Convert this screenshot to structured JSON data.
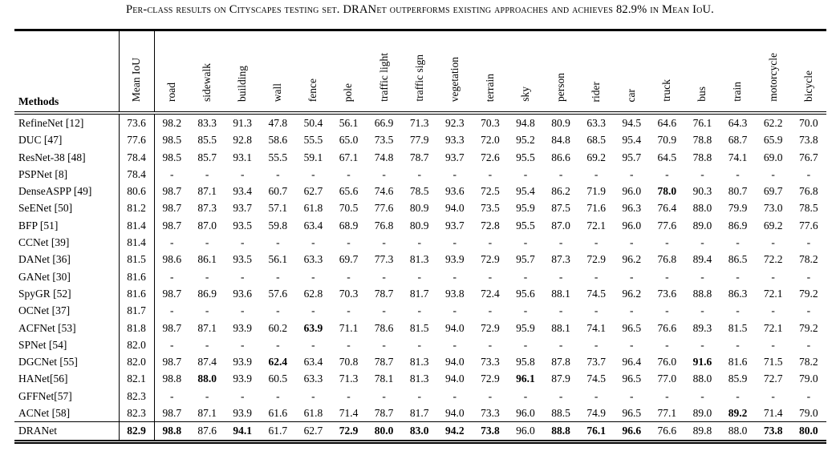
{
  "title": "Per-class results on Cityscapes testing set. DRANet outperforms existing approaches and achieves 82.9% in Mean IoU.",
  "table": {
    "methods_header": "Methods",
    "mean_iou_header": "Mean IoU",
    "class_headers": [
      "road",
      "sidewalk",
      "building",
      "wall",
      "fence",
      "pole",
      "traffic light",
      "traffic sign",
      "vegetation",
      "terrain",
      "sky",
      "person",
      "rider",
      "car",
      "truck",
      "bus",
      "train",
      "motorcycle",
      "bicycle"
    ],
    "rows": [
      {
        "method": "RefineNet [12]",
        "mean_iou": "73.6",
        "mean_iou_bold": false,
        "bold": [],
        "values": [
          "98.2",
          "83.3",
          "91.3",
          "47.8",
          "50.4",
          "56.1",
          "66.9",
          "71.3",
          "92.3",
          "70.3",
          "94.8",
          "80.9",
          "63.3",
          "94.5",
          "64.6",
          "76.1",
          "64.3",
          "62.2",
          "70.0"
        ]
      },
      {
        "method": "DUC [47]",
        "mean_iou": "77.6",
        "mean_iou_bold": false,
        "bold": [],
        "values": [
          "98.5",
          "85.5",
          "92.8",
          "58.6",
          "55.5",
          "65.0",
          "73.5",
          "77.9",
          "93.3",
          "72.0",
          "95.2",
          "84.8",
          "68.5",
          "95.4",
          "70.9",
          "78.8",
          "68.7",
          "65.9",
          "73.8"
        ]
      },
      {
        "method": "ResNet-38 [48]",
        "mean_iou": "78.4",
        "mean_iou_bold": false,
        "bold": [],
        "values": [
          "98.5",
          "85.7",
          "93.1",
          "55.5",
          "59.1",
          "67.1",
          "74.8",
          "78.7",
          "93.7",
          "72.6",
          "95.5",
          "86.6",
          "69.2",
          "95.7",
          "64.5",
          "78.8",
          "74.1",
          "69.0",
          "76.7"
        ]
      },
      {
        "method": "PSPNet [8]",
        "mean_iou": "78.4",
        "mean_iou_bold": false,
        "bold": [],
        "values": [
          "-",
          "-",
          "-",
          "-",
          "-",
          "-",
          "-",
          "-",
          "-",
          "-",
          "-",
          "-",
          "-",
          "-",
          "-",
          "-",
          "-",
          "-",
          "-"
        ]
      },
      {
        "method": "DenseASPP [49]",
        "mean_iou": "80.6",
        "mean_iou_bold": false,
        "bold": [
          14
        ],
        "values": [
          "98.7",
          "87.1",
          "93.4",
          "60.7",
          "62.7",
          "65.6",
          "74.6",
          "78.5",
          "93.6",
          "72.5",
          "95.4",
          "86.2",
          "71.9",
          "96.0",
          "78.0",
          "90.3",
          "80.7",
          "69.7",
          "76.8"
        ]
      },
      {
        "method": "SeENet [50]",
        "mean_iou": "81.2",
        "mean_iou_bold": false,
        "bold": [],
        "values": [
          "98.7",
          "87.3",
          "93.7",
          "57.1",
          "61.8",
          "70.5",
          "77.6",
          "80.9",
          "94.0",
          "73.5",
          "95.9",
          "87.5",
          "71.6",
          "96.3",
          "76.4",
          "88.0",
          "79.9",
          "73.0",
          "78.5"
        ]
      },
      {
        "method": "BFP [51]",
        "mean_iou": "81.4",
        "mean_iou_bold": false,
        "bold": [],
        "values": [
          "98.7",
          "87.0",
          "93.5",
          "59.8",
          "63.4",
          "68.9",
          "76.8",
          "80.9",
          "93.7",
          "72.8",
          "95.5",
          "87.0",
          "72.1",
          "96.0",
          "77.6",
          "89.0",
          "86.9",
          "69.2",
          "77.6"
        ]
      },
      {
        "method": "CCNet [39]",
        "mean_iou": "81.4",
        "mean_iou_bold": false,
        "bold": [],
        "values": [
          "-",
          "-",
          "-",
          "-",
          "-",
          "-",
          "-",
          "-",
          "-",
          "-",
          "-",
          "-",
          "-",
          "-",
          "-",
          "-",
          "-",
          "-",
          "-"
        ]
      },
      {
        "method": "DANet [36]",
        "mean_iou": "81.5",
        "mean_iou_bold": false,
        "bold": [],
        "values": [
          "98.6",
          "86.1",
          "93.5",
          "56.1",
          "63.3",
          "69.7",
          "77.3",
          "81.3",
          "93.9",
          "72.9",
          "95.7",
          "87.3",
          "72.9",
          "96.2",
          "76.8",
          "89.4",
          "86.5",
          "72.2",
          "78.2"
        ]
      },
      {
        "method": "GANet [30]",
        "mean_iou": "81.6",
        "mean_iou_bold": false,
        "bold": [],
        "values": [
          "-",
          "-",
          "-",
          "-",
          "-",
          "-",
          "-",
          "-",
          "-",
          "-",
          "-",
          "-",
          "-",
          "-",
          "-",
          "-",
          "-",
          "-",
          "-"
        ]
      },
      {
        "method": "SpyGR [52]",
        "mean_iou": "81.6",
        "mean_iou_bold": false,
        "bold": [],
        "values": [
          "98.7",
          "86.9",
          "93.6",
          "57.6",
          "62.8",
          "70.3",
          "78.7",
          "81.7",
          "93.8",
          "72.4",
          "95.6",
          "88.1",
          "74.5",
          "96.2",
          "73.6",
          "88.8",
          "86.3",
          "72.1",
          "79.2"
        ]
      },
      {
        "method": "OCNet [37]",
        "mean_iou": "81.7",
        "mean_iou_bold": false,
        "bold": [],
        "values": [
          "-",
          "-",
          "-",
          "-",
          "-",
          "-",
          "-",
          "-",
          "-",
          "-",
          "-",
          "-",
          "-",
          "-",
          "-",
          "-",
          "-",
          "-",
          "-"
        ]
      },
      {
        "method": "ACFNet [53]",
        "mean_iou": "81.8",
        "mean_iou_bold": false,
        "bold": [
          4
        ],
        "values": [
          "98.7",
          "87.1",
          "93.9",
          "60.2",
          "63.9",
          "71.1",
          "78.6",
          "81.5",
          "94.0",
          "72.9",
          "95.9",
          "88.1",
          "74.1",
          "96.5",
          "76.6",
          "89.3",
          "81.5",
          "72.1",
          "79.2"
        ]
      },
      {
        "method": "SPNet [54]",
        "mean_iou": "82.0",
        "mean_iou_bold": false,
        "bold": [],
        "values": [
          "-",
          "-",
          "-",
          "-",
          "-",
          "-",
          "-",
          "-",
          "-",
          "-",
          "-",
          "-",
          "-",
          "-",
          "-",
          "-",
          "-",
          "-",
          "-"
        ]
      },
      {
        "method": "DGCNet [55]",
        "mean_iou": "82.0",
        "mean_iou_bold": false,
        "bold": [
          3,
          15
        ],
        "values": [
          "98.7",
          "87.4",
          "93.9",
          "62.4",
          "63.4",
          "70.8",
          "78.7",
          "81.3",
          "94.0",
          "73.3",
          "95.8",
          "87.8",
          "73.7",
          "96.4",
          "76.0",
          "91.6",
          "81.6",
          "71.5",
          "78.2"
        ]
      },
      {
        "method": "HANet[56]",
        "mean_iou": "82.1",
        "mean_iou_bold": false,
        "bold": [
          1,
          10
        ],
        "values": [
          "98.8",
          "88.0",
          "93.9",
          "60.5",
          "63.3",
          "71.3",
          "78.1",
          "81.3",
          "94.0",
          "72.9",
          "96.1",
          "87.9",
          "74.5",
          "96.5",
          "77.0",
          "88.0",
          "85.9",
          "72.7",
          "79.0"
        ]
      },
      {
        "method": "GFFNet[57]",
        "mean_iou": "82.3",
        "mean_iou_bold": false,
        "bold": [],
        "values": [
          "-",
          "-",
          "-",
          "-",
          "-",
          "-",
          "-",
          "-",
          "-",
          "-",
          "-",
          "-",
          "-",
          "-",
          "-",
          "-",
          "-",
          "-",
          "-"
        ]
      },
      {
        "method": "ACNet [58]",
        "mean_iou": "82.3",
        "mean_iou_bold": false,
        "bold": [
          16
        ],
        "values": [
          "98.7",
          "87.1",
          "93.9",
          "61.6",
          "61.8",
          "71.4",
          "78.7",
          "81.7",
          "94.0",
          "73.3",
          "96.0",
          "88.5",
          "74.9",
          "96.5",
          "77.1",
          "89.0",
          "89.2",
          "71.4",
          "79.0"
        ]
      },
      {
        "method": "DRANet",
        "mean_iou": "82.9",
        "mean_iou_bold": true,
        "is_result_row": true,
        "bold": [
          0,
          2,
          5,
          6,
          7,
          8,
          9,
          11,
          12,
          13,
          17,
          18
        ],
        "values": [
          "98.8",
          "87.6",
          "94.1",
          "61.7",
          "62.7",
          "72.9",
          "80.0",
          "83.0",
          "94.2",
          "73.8",
          "96.0",
          "88.8",
          "76.1",
          "96.6",
          "76.6",
          "89.8",
          "88.0",
          "73.8",
          "80.0"
        ]
      }
    ]
  }
}
